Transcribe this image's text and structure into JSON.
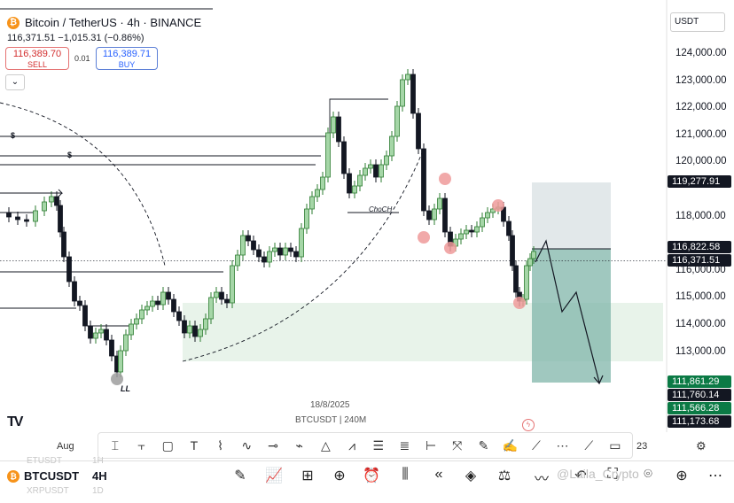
{
  "header": {
    "title": "Bitcoin / TetherUS · 4h · BINANCE",
    "price_line": "116,371.51 −1,015.31 (−0.86%)",
    "sell_price": "116,389.70",
    "sell_label": "SELL",
    "spread": "0.01",
    "buy_price": "116,389.71",
    "buy_label": "BUY",
    "collapse_icon": "chevron-down-icon",
    "currency": "USDT"
  },
  "price_axis": {
    "labels": [
      "124,000.00",
      "123,000.00",
      "122,000.00",
      "121,000.00",
      "120,000.00",
      "118,000.00",
      "116,000.00",
      "115,000.00",
      "114,000.00",
      "113,000.00"
    ],
    "tags": [
      {
        "text": "119,277.91",
        "color": "#131722"
      },
      {
        "text": "116,822.58",
        "color": "#131722"
      },
      {
        "text": "116,371.51",
        "color": "#131722"
      },
      {
        "text": "111,861.29",
        "color": "#0b7a45"
      },
      {
        "text": "111,760.14",
        "color": "#131722"
      },
      {
        "text": "111,566.28",
        "color": "#0b7a45"
      },
      {
        "text": "111,173.68",
        "color": "#131722"
      }
    ]
  },
  "chart_data": {
    "type": "candlestick",
    "symbol": "BTCUSDT",
    "interval": "4h",
    "date_label": "18/8/2025",
    "pair_label": "BTCUSDT | 240M",
    "x_axis_labels": [
      "Aug",
      "23"
    ],
    "annotations": [
      "ChoCH",
      "LL",
      "$",
      "$"
    ],
    "current_price": 116371.51,
    "colors": {
      "up": "#26a69a",
      "down": "#131722",
      "up_body": "#2e7d32"
    },
    "grid": false
  },
  "drawing_toolbar": {
    "tools": [
      "cursor-icon",
      "trendline-icon",
      "rectangle-icon",
      "text-icon",
      "brush-icon",
      "curve-icon",
      "horizontal-line-icon",
      "path-icon",
      "fib-icon",
      "zigzag-icon",
      "channel-icon",
      "parallel-channel-icon",
      "ruler-icon",
      "long-position-icon",
      "arrow-icon",
      "pitchfork-icon",
      "pencil-icon",
      "ray-icon",
      "comment-icon"
    ],
    "x_labels": {
      "left": "Aug",
      "right": "23"
    }
  },
  "bottom_bar": {
    "symbol": "BTCUSDT",
    "timeframe": "4H",
    "ghost_symbols": [
      "ETUSDT",
      "XRPUSDT"
    ],
    "ghost_tfs": [
      "1H",
      "1D"
    ],
    "watermark": "@Laila_Crypto"
  }
}
